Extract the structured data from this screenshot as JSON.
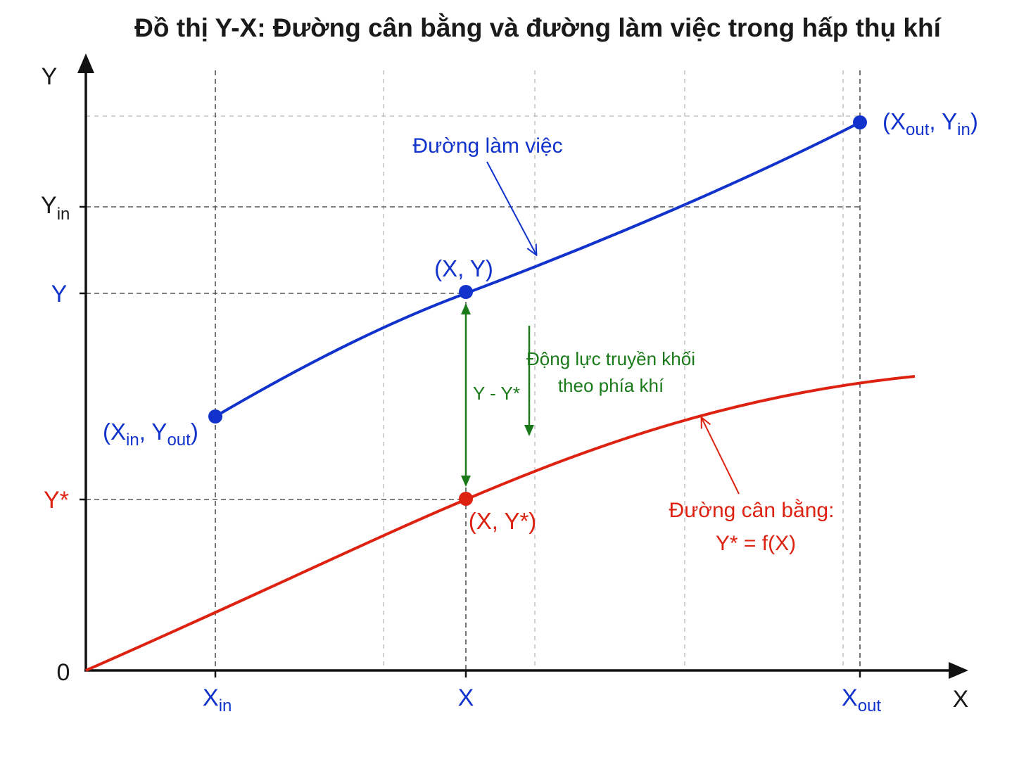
{
  "title": "Đồ thị Y-X: Đường cân bằng và đường làm việc trong hấp thụ khí",
  "axes": {
    "y_name": "Y",
    "x_name": "X",
    "origin": "0"
  },
  "y_ticks": {
    "yin_main": "Y",
    "yin_sub": "in",
    "y": "Y",
    "ystar": "Y*"
  },
  "x_ticks": {
    "xin_main": "X",
    "xin_sub": "in",
    "x": "X",
    "xout_main": "X",
    "xout_sub": "out"
  },
  "points": {
    "start": {
      "p1": "(X",
      "s1": "in",
      "p2": ", Y",
      "s2": "out",
      "p3": ")"
    },
    "end": {
      "p1": "(X",
      "s1": "out",
      "p2": ", Y",
      "s2": "in",
      "p3": ")"
    },
    "xy": "(X, Y)",
    "xystar": "(X, Y*)"
  },
  "labels": {
    "operating_line": "Đường làm việc",
    "equilibrium_line_1": "Đường cân bằng:",
    "equilibrium_line_2": "Y* = f(X)",
    "driving_force": "Y - Y*",
    "driving_note_1": "Động lực truyền khối",
    "driving_note_2": "theo phía khí"
  },
  "colors": {
    "operating": "#1133cc",
    "equilibrium": "#dd2211",
    "driving_force": "#1a7a1a",
    "axis": "#111111"
  }
}
